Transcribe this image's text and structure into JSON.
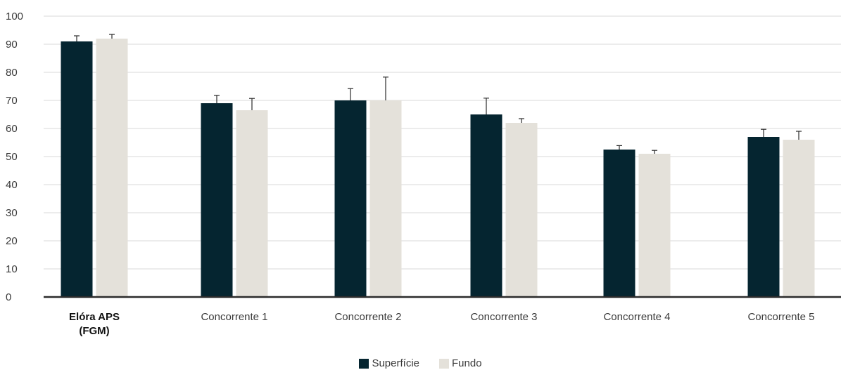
{
  "chart_data": {
    "type": "bar",
    "categories": [
      {
        "line1": "Elóra APS",
        "line2": "(FGM)",
        "bold": true
      },
      {
        "line1": "Concorrente 1",
        "line2": "",
        "bold": false
      },
      {
        "line1": "Concorrente 2",
        "line2": "",
        "bold": false
      },
      {
        "line1": "Concorrente 3",
        "line2": "",
        "bold": false
      },
      {
        "line1": "Concorrente 4",
        "line2": "",
        "bold": false
      },
      {
        "line1": "Concorrente 5",
        "line2": "",
        "bold": false
      }
    ],
    "series": [
      {
        "name": "Superfície",
        "color": "#052530",
        "values": [
          91,
          69,
          70,
          65,
          52.5,
          57
        ],
        "errors": [
          2,
          2.8,
          4.2,
          5.8,
          1.4,
          2.7
        ]
      },
      {
        "name": "Fundo",
        "color": "#e4e1da",
        "values": [
          92,
          66.5,
          70,
          62,
          51,
          56
        ],
        "errors": [
          1.5,
          4.2,
          8.3,
          1.5,
          1.2,
          3
        ]
      }
    ],
    "yticks": [
      0,
      10,
      20,
      30,
      40,
      50,
      60,
      70,
      80,
      90,
      100
    ],
    "ylim": [
      0,
      100
    ],
    "grid": true,
    "legend_position": "bottom-center"
  }
}
